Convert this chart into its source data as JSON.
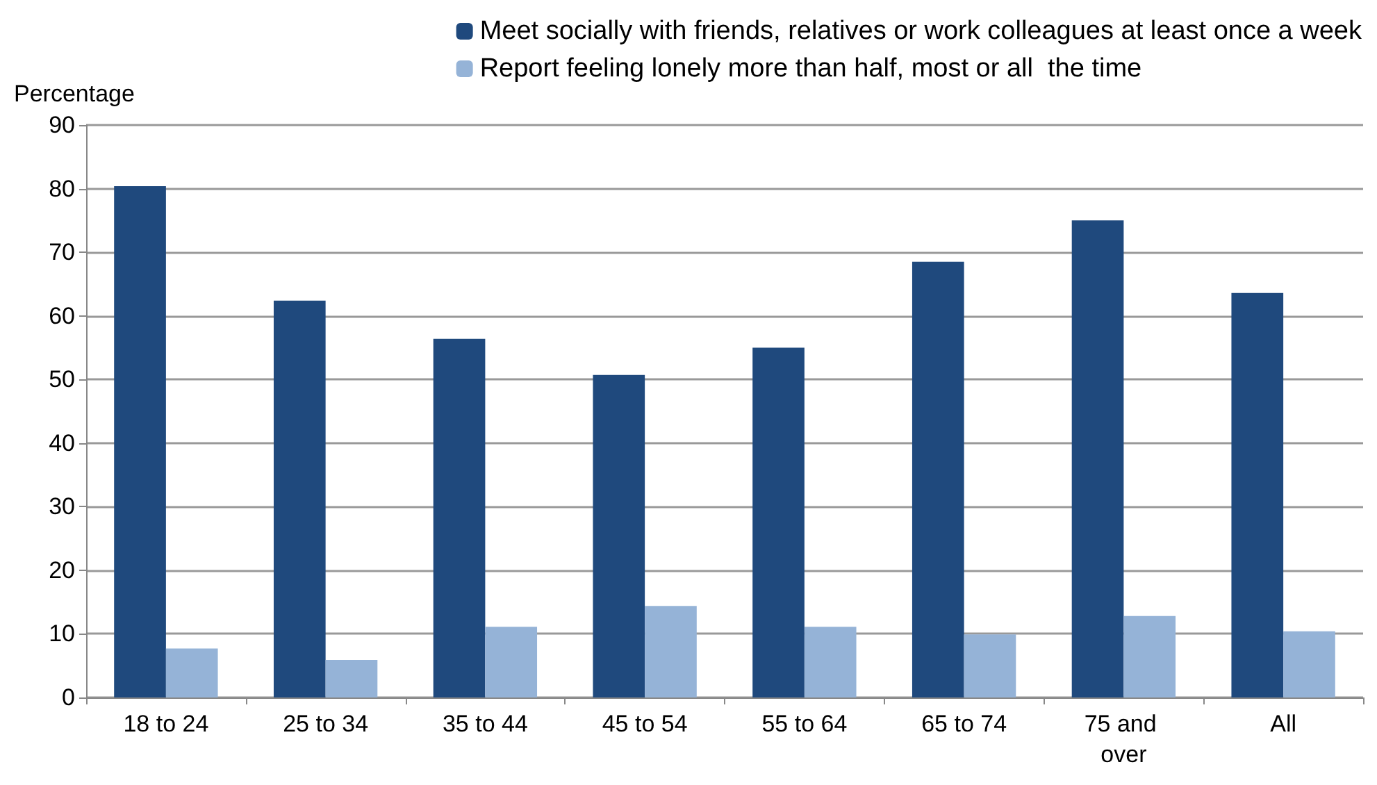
{
  "chart_data": {
    "type": "bar",
    "ylabel": "Percentage",
    "categories": [
      "18 to 24",
      "25 to 34",
      "35 to 44",
      "45 to 54",
      "55 to 64",
      "65 to 74",
      "75 and over",
      "All"
    ],
    "series": [
      {
        "name": "Meet socially with friends, relatives or work colleagues at least once a week",
        "color": "#1f497d",
        "values": [
          80.4,
          62.4,
          56.4,
          50.7,
          55.0,
          68.5,
          75.0,
          63.6
        ]
      },
      {
        "name": "Report feeling lonely more than half, most or all  the time",
        "color": "#95b3d7",
        "values": [
          7.7,
          5.9,
          11.1,
          14.4,
          11.1,
          9.9,
          12.8,
          10.4
        ]
      }
    ],
    "ylim": [
      0,
      90
    ],
    "yticks": [
      0,
      10,
      20,
      30,
      40,
      50,
      60,
      70,
      80,
      90
    ],
    "grid": "y",
    "legend": "top right"
  }
}
